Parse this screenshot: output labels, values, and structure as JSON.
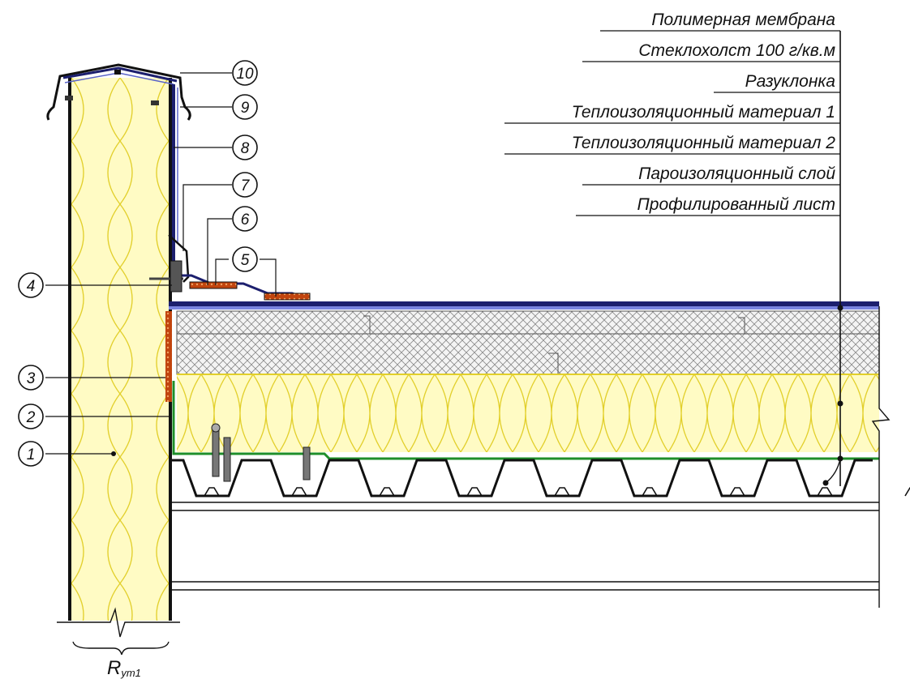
{
  "layers": [
    "Полимерная мембрана",
    "Стеклохолст 100 г/кв.м",
    "Разуклонка",
    "Теплоизоляционный материал 1",
    "Теплоизоляционный материал 2",
    "Пароизоляционный слой",
    "Профилированный лист"
  ],
  "callouts": [
    "1",
    "2",
    "3",
    "4",
    "5",
    "6",
    "7",
    "8",
    "9",
    "10"
  ],
  "wall_label": {
    "main": "R",
    "sub": "ут1"
  },
  "colors": {
    "insulation_fill": "#fffbc4",
    "insulation_lines": "#e2cf2a",
    "membrane": "#1c1f6e",
    "vapor_barrier": "#1f8f2a",
    "seal_strip": "#c1440e",
    "hatch": "#8a8a8a",
    "line": "#111111"
  }
}
